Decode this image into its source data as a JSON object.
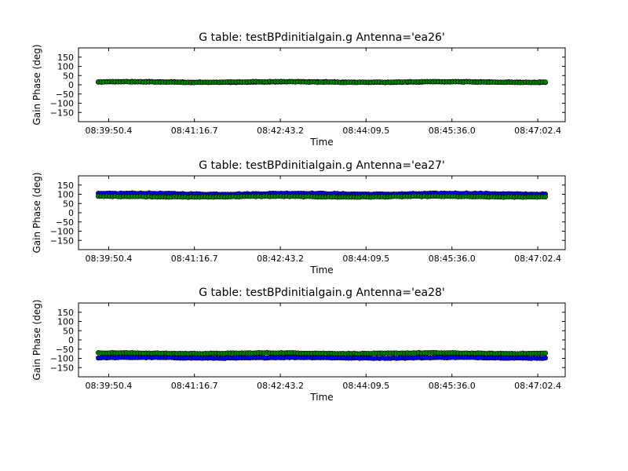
{
  "chart_data": [
    {
      "type": "scatter",
      "title": "G table: testBPdinitialgain.g      Antenna='ea26'",
      "xlabel": "Time",
      "ylabel": "Gain Phase (deg)",
      "xlim": [
        "08:39:20",
        "08:47:30"
      ],
      "ylim": [
        -200,
        200
      ],
      "x_ticks": [
        "08:39:50.4",
        "08:41:16.7",
        "08:42:43.2",
        "08:44:09.5",
        "08:45:36.0",
        "08:47:02.4"
      ],
      "y_ticks": [
        150,
        100,
        50,
        0,
        -50,
        -100,
        -150
      ],
      "x_range": [
        "08:39:40",
        "08:47:10"
      ],
      "series": [
        {
          "color": "#0000ff",
          "y_mean": 15,
          "y_jitter": 3
        },
        {
          "color": "#008000",
          "y_mean": 15,
          "y_jitter": 3
        }
      ]
    },
    {
      "type": "scatter",
      "title": "G table: testBPdinitialgain.g      Antenna='ea27'",
      "xlabel": "Time",
      "ylabel": "Gain Phase (deg)",
      "xlim": [
        "08:39:20",
        "08:47:30"
      ],
      "ylim": [
        -200,
        200
      ],
      "x_ticks": [
        "08:39:50.4",
        "08:41:16.7",
        "08:42:43.2",
        "08:44:09.5",
        "08:45:36.0",
        "08:47:02.4"
      ],
      "y_ticks": [
        150,
        100,
        50,
        0,
        -50,
        -100,
        -150
      ],
      "x_range": [
        "08:39:40",
        "08:47:10"
      ],
      "series": [
        {
          "color": "#0000ff",
          "y_mean": 103,
          "y_jitter": 4
        },
        {
          "color": "#008000",
          "y_mean": 87,
          "y_jitter": 3
        }
      ]
    },
    {
      "type": "scatter",
      "title": "G table: testBPdinitialgain.g      Antenna='ea28'",
      "xlabel": "Time",
      "ylabel": "Gain Phase (deg)",
      "xlim": [
        "08:39:20",
        "08:47:30"
      ],
      "ylim": [
        -200,
        200
      ],
      "x_ticks": [
        "08:39:50.4",
        "08:41:16.7",
        "08:42:43.2",
        "08:44:09.5",
        "08:45:36.0",
        "08:47:02.4"
      ],
      "y_ticks": [
        150,
        100,
        50,
        0,
        -50,
        -100,
        -150
      ],
      "x_range": [
        "08:39:40",
        "08:47:10"
      ],
      "series": [
        {
          "color": "#0000ff",
          "y_mean": -97,
          "y_jitter": 3
        },
        {
          "color": "#008000",
          "y_mean": -72,
          "y_jitter": 3
        }
      ]
    }
  ]
}
